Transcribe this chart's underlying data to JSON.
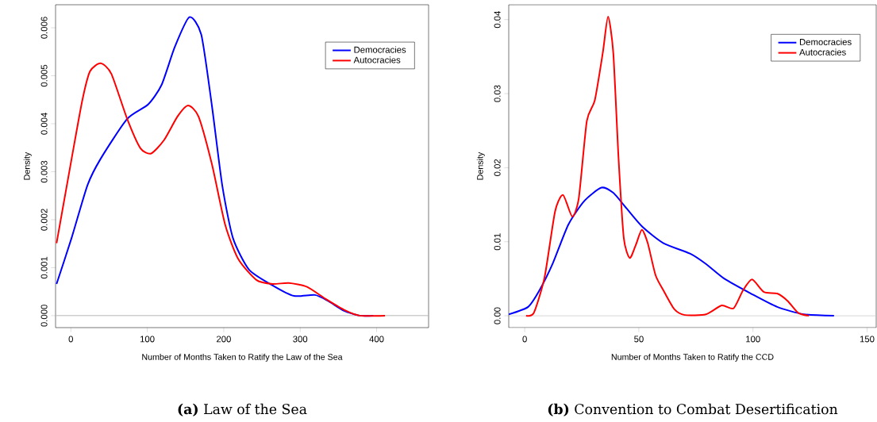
{
  "chart_data": [
    {
      "type": "line",
      "xlabel": "Number of Months Taken to Ratify the Law of the Sea",
      "ylabel": "Density",
      "xlim": [
        -20,
        468
      ],
      "ylim": [
        -0.00025,
        0.00648
      ],
      "xticks": [
        0,
        100,
        200,
        300,
        400
      ],
      "yticks": [
        {
          "value": 0,
          "label": "0.000"
        },
        {
          "value": 0.001,
          "label": "0.001"
        },
        {
          "value": 0.002,
          "label": "0.002"
        },
        {
          "value": 0.003,
          "label": "0.003"
        },
        {
          "value": 0.004,
          "label": "0.004"
        },
        {
          "value": 0.005,
          "label": "0.005"
        },
        {
          "value": 0.006,
          "label": "0.006"
        }
      ],
      "legend": "top right",
      "grid": false,
      "ref_lines": [
        {
          "axis": "y",
          "value": 0,
          "color": "#bebebe"
        }
      ],
      "annotations": [
        "**(a)** Law of the Sea"
      ],
      "series": [
        {
          "name": "Democracies",
          "color": "#0000ff",
          "x": [
            -18.7,
            1,
            21.8,
            39,
            73.7,
            101,
            118.7,
            136,
            155,
            170.6,
            184.5,
            198,
            212,
            233,
            264,
            292,
            319.5,
            337,
            357.5,
            378,
            395.6
          ],
          "values": [
            0.00066,
            0.00162,
            0.00272,
            0.00327,
            0.0041,
            0.0044,
            0.00481,
            0.0056,
            0.00622,
            0.00586,
            0.00438,
            0.00272,
            0.00162,
            0.00096,
            0.00063,
            0.00041,
            0.00043,
            0.0003,
            0.0001,
            0,
            0
          ]
        },
        {
          "name": "Autocracies",
          "color": "#ff0000",
          "x": [
            -18.7,
            1,
            14.9,
            25,
            39,
            53,
            73.7,
            91,
            105,
            122,
            139.5,
            153.4,
            167,
            184.5,
            201.8,
            219,
            243,
            264,
            285,
            309,
            333,
            357.5,
            378,
            411
          ],
          "values": [
            0.00151,
            0.00327,
            0.00448,
            0.00509,
            0.00526,
            0.00504,
            0.0041,
            0.00349,
            0.00338,
            0.00366,
            0.00415,
            0.00438,
            0.00415,
            0.00316,
            0.0019,
            0.00118,
            0.00074,
            0.00066,
            0.00068,
            0.0006,
            0.00035,
            0.00012,
            0,
            0
          ]
        }
      ]
    },
    {
      "type": "line",
      "xlabel": "Number of Months Taken to Ratify the CCD",
      "ylabel": "Density",
      "xlim": [
        -7,
        154
      ],
      "ylim": [
        -0.0016,
        0.042
      ],
      "xticks": [
        0,
        50,
        100,
        150
      ],
      "yticks": [
        {
          "value": 0,
          "label": "0.00"
        },
        {
          "value": 0.01,
          "label": "0.01"
        },
        {
          "value": 0.02,
          "label": "0.02"
        },
        {
          "value": 0.03,
          "label": "0.03"
        },
        {
          "value": 0.04,
          "label": "0.04"
        }
      ],
      "legend": "top right",
      "grid": false,
      "ref_lines": [
        {
          "axis": "y",
          "value": 0,
          "color": "#bebebe"
        }
      ],
      "annotations": [
        "**(b)** Convention to Combat Desertification"
      ],
      "series": [
        {
          "name": "Democracies",
          "color": "#0000ff",
          "x": [
            -7,
            1.5,
            6.4,
            12.2,
            19.1,
            26.1,
            33.6,
            38.8,
            44.6,
            51.6,
            60.8,
            72.4,
            79.4,
            87.5,
            99.1,
            110.6,
            122.2,
            135.5
          ],
          "values": [
            0.0002,
            0.0012,
            0.0034,
            0.007,
            0.0123,
            0.0155,
            0.0173,
            0.0166,
            0.0145,
            0.012,
            0.0098,
            0.0084,
            0.007,
            0.005,
            0.003,
            0.0012,
            0.0002,
            0
          ]
        },
        {
          "name": "Autocracies",
          "color": "#ff0000",
          "x": [
            0.6,
            4.0,
            8.7,
            13.3,
            16.8,
            20.8,
            23.7,
            27.2,
            30.7,
            34.2,
            36.5,
            38.8,
            41.1,
            43.4,
            46.0,
            48.6,
            51.3,
            53.9,
            57.3,
            60.8,
            65.5,
            70.1,
            79.4,
            86.3,
            91.5,
            95.6,
            99.6,
            104.8,
            110.6,
            115.2,
            119.8,
            124.5
          ],
          "values": [
            0,
            0.0004,
            0.0052,
            0.0141,
            0.0163,
            0.0134,
            0.0159,
            0.0263,
            0.0291,
            0.0355,
            0.0404,
            0.0355,
            0.0213,
            0.0105,
            0.0078,
            0.0095,
            0.0116,
            0.0098,
            0.0055,
            0.0034,
            0.0009,
            0.0001,
            0.0002,
            0.0014,
            0.001,
            0.0034,
            0.0049,
            0.0032,
            0.003,
            0.002,
            0.0004,
            0
          ]
        }
      ]
    }
  ]
}
